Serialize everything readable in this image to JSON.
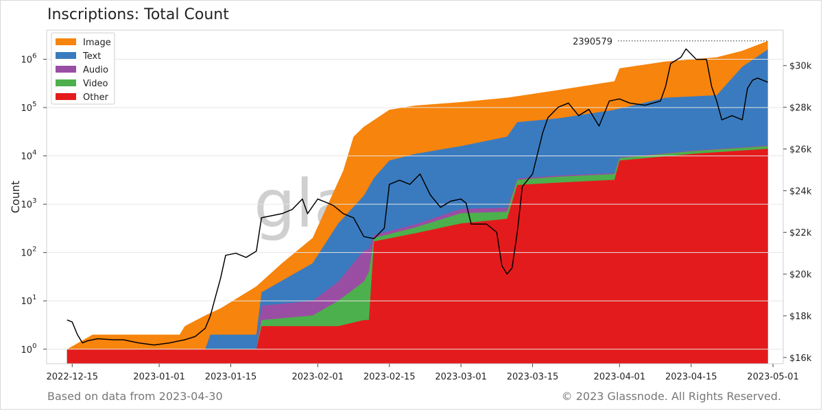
{
  "title": "Inscriptions: Total Count",
  "footer": {
    "source_note": "Based on data from 2023-04-30",
    "copyright": "© 2023 Glassnode. All Rights Reserved."
  },
  "watermark": "glassnode",
  "chart_data": {
    "type": "area",
    "stacked": true,
    "title": "Inscriptions: Total Count",
    "ylabel": "Count",
    "y_scale": "log",
    "ylim": [
      0.5,
      4000000
    ],
    "y_ticks": [
      {
        "value": 1,
        "base": "10",
        "exp": "0"
      },
      {
        "value": 10,
        "base": "10",
        "exp": "1"
      },
      {
        "value": 100,
        "base": "10",
        "exp": "2"
      },
      {
        "value": 1000,
        "base": "10",
        "exp": "3"
      },
      {
        "value": 10000,
        "base": "10",
        "exp": "4"
      },
      {
        "value": 100000,
        "base": "10",
        "exp": "5"
      },
      {
        "value": 1000000,
        "base": "10",
        "exp": "6"
      }
    ],
    "xlim": [
      "2022-12-10",
      "2023-05-03"
    ],
    "x_ticks": [
      "2022-12-15",
      "2023-01-01",
      "2023-01-15",
      "2023-02-01",
      "2023-02-15",
      "2023-03-01",
      "2023-03-15",
      "2023-04-01",
      "2023-04-15",
      "2023-05-01"
    ],
    "legend": {
      "placement": "top-left",
      "entries": [
        "Image",
        "Text",
        "Audio",
        "Video",
        "Other"
      ]
    },
    "grid": true,
    "annotation": {
      "label": "2390579",
      "value": 2390579,
      "date": "2023-04-30"
    },
    "colors": {
      "Image": "#f7840c",
      "Text": "#3a7bbf",
      "Audio": "#9a4ea3",
      "Video": "#4cb04c",
      "Other": "#e41b1c",
      "price": "#000000"
    },
    "series": [
      {
        "name": "Other",
        "points": [
          [
            "2022-12-14",
            1
          ],
          [
            "2023-01-20",
            1
          ],
          [
            "2023-01-21",
            3
          ],
          [
            "2023-01-31",
            3
          ],
          [
            "2023-02-05",
            3
          ],
          [
            "2023-02-10",
            4
          ],
          [
            "2023-02-11",
            4
          ],
          [
            "2023-02-12",
            170
          ],
          [
            "2023-02-20",
            250
          ],
          [
            "2023-03-01",
            400
          ],
          [
            "2023-03-10",
            500
          ],
          [
            "2023-03-12",
            2500
          ],
          [
            "2023-03-20",
            2800
          ],
          [
            "2023-03-31",
            3200
          ],
          [
            "2023-04-01",
            8000
          ],
          [
            "2023-04-15",
            11000
          ],
          [
            "2023-04-30",
            14000
          ]
        ]
      },
      {
        "name": "Video",
        "points": [
          [
            "2022-12-14",
            1
          ],
          [
            "2023-01-20",
            1
          ],
          [
            "2023-01-21",
            4
          ],
          [
            "2023-01-31",
            5
          ],
          [
            "2023-02-05",
            10
          ],
          [
            "2023-02-10",
            25
          ],
          [
            "2023-02-11",
            40
          ],
          [
            "2023-02-12",
            200
          ],
          [
            "2023-02-20",
            330
          ],
          [
            "2023-03-01",
            650
          ],
          [
            "2023-03-10",
            700
          ],
          [
            "2023-03-12",
            3200
          ],
          [
            "2023-03-20",
            3700
          ],
          [
            "2023-03-31",
            4200
          ],
          [
            "2023-04-01",
            9000
          ],
          [
            "2023-04-15",
            12500
          ],
          [
            "2023-04-30",
            16000
          ]
        ]
      },
      {
        "name": "Audio",
        "points": [
          [
            "2022-12-14",
            1
          ],
          [
            "2023-01-20",
            1
          ],
          [
            "2023-01-21",
            8
          ],
          [
            "2023-01-31",
            10
          ],
          [
            "2023-02-05",
            25
          ],
          [
            "2023-02-10",
            110
          ],
          [
            "2023-02-11",
            120
          ],
          [
            "2023-02-12",
            230
          ],
          [
            "2023-02-20",
            380
          ],
          [
            "2023-03-01",
            800
          ],
          [
            "2023-03-10",
            850
          ],
          [
            "2023-03-12",
            3400
          ],
          [
            "2023-03-20",
            3900
          ],
          [
            "2023-03-31",
            4400
          ],
          [
            "2023-04-01",
            9300
          ],
          [
            "2023-04-15",
            12800
          ],
          [
            "2023-04-30",
            16500
          ]
        ]
      },
      {
        "name": "Text",
        "points": [
          [
            "2022-12-14",
            1
          ],
          [
            "2023-01-10",
            1
          ],
          [
            "2023-01-11",
            2
          ],
          [
            "2023-01-20",
            2
          ],
          [
            "2023-01-21",
            15
          ],
          [
            "2023-01-31",
            60
          ],
          [
            "2023-02-05",
            400
          ],
          [
            "2023-02-10",
            1500
          ],
          [
            "2023-02-12",
            3500
          ],
          [
            "2023-02-15",
            8000
          ],
          [
            "2023-02-20",
            11000
          ],
          [
            "2023-03-01",
            16000
          ],
          [
            "2023-03-10",
            25000
          ],
          [
            "2023-03-12",
            50000
          ],
          [
            "2023-03-20",
            60000
          ],
          [
            "2023-03-31",
            90000
          ],
          [
            "2023-04-10",
            160000
          ],
          [
            "2023-04-20",
            180000
          ],
          [
            "2023-04-25",
            700000
          ],
          [
            "2023-04-30",
            1600000
          ]
        ]
      },
      {
        "name": "Image",
        "points": [
          [
            "2022-12-14",
            1
          ],
          [
            "2022-12-19",
            2
          ],
          [
            "2023-01-05",
            2
          ],
          [
            "2023-01-06",
            3
          ],
          [
            "2023-01-10",
            5
          ],
          [
            "2023-01-13",
            7
          ],
          [
            "2023-01-20",
            20
          ],
          [
            "2023-01-25",
            60
          ],
          [
            "2023-01-31",
            200
          ],
          [
            "2023-02-03",
            1000
          ],
          [
            "2023-02-06",
            5000
          ],
          [
            "2023-02-08",
            25000
          ],
          [
            "2023-02-10",
            40000
          ],
          [
            "2023-02-15",
            90000
          ],
          [
            "2023-02-20",
            110000
          ],
          [
            "2023-03-01",
            130000
          ],
          [
            "2023-03-10",
            160000
          ],
          [
            "2023-03-20",
            230000
          ],
          [
            "2023-03-31",
            350000
          ],
          [
            "2023-04-01",
            650000
          ],
          [
            "2023-04-10",
            900000
          ],
          [
            "2023-04-20",
            1100000
          ],
          [
            "2023-04-25",
            1500000
          ],
          [
            "2023-04-30",
            2390579
          ]
        ]
      }
    ],
    "price_axis": {
      "unit": "USD",
      "ylim": [
        15700,
        31700
      ],
      "ticks": [
        {
          "value": 16000,
          "label": "$16k"
        },
        {
          "value": 18000,
          "label": "$18k"
        },
        {
          "value": 20000,
          "label": "$20k"
        },
        {
          "value": 22000,
          "label": "$22k"
        },
        {
          "value": 24000,
          "label": "$24k"
        },
        {
          "value": 26000,
          "label": "$26k"
        },
        {
          "value": 28000,
          "label": "$28k"
        },
        {
          "value": 30000,
          "label": "$30k"
        }
      ]
    },
    "price_series": [
      [
        "2022-12-14",
        17800
      ],
      [
        "2022-12-15",
        17700
      ],
      [
        "2022-12-16",
        17100
      ],
      [
        "2022-12-17",
        16700
      ],
      [
        "2022-12-18",
        16800
      ],
      [
        "2022-12-20",
        16900
      ],
      [
        "2022-12-23",
        16850
      ],
      [
        "2022-12-25",
        16850
      ],
      [
        "2022-12-28",
        16700
      ],
      [
        "2022-12-31",
        16600
      ],
      [
        "2023-01-03",
        16700
      ],
      [
        "2023-01-06",
        16850
      ],
      [
        "2023-01-08",
        17000
      ],
      [
        "2023-01-09",
        17200
      ],
      [
        "2023-01-10",
        17400
      ],
      [
        "2023-01-11",
        18000
      ],
      [
        "2023-01-12",
        18900
      ],
      [
        "2023-01-13",
        19800
      ],
      [
        "2023-01-14",
        20900
      ],
      [
        "2023-01-16",
        21000
      ],
      [
        "2023-01-18",
        20800
      ],
      [
        "2023-01-20",
        21100
      ],
      [
        "2023-01-21",
        22700
      ],
      [
        "2023-01-23",
        22800
      ],
      [
        "2023-01-25",
        22900
      ],
      [
        "2023-01-27",
        23100
      ],
      [
        "2023-01-29",
        23600
      ],
      [
        "2023-01-30",
        22900
      ],
      [
        "2023-02-01",
        23600
      ],
      [
        "2023-02-02",
        23500
      ],
      [
        "2023-02-04",
        23300
      ],
      [
        "2023-02-06",
        22900
      ],
      [
        "2023-02-08",
        22700
      ],
      [
        "2023-02-10",
        21800
      ],
      [
        "2023-02-12",
        21700
      ],
      [
        "2023-02-14",
        22200
      ],
      [
        "2023-02-15",
        24300
      ],
      [
        "2023-02-17",
        24500
      ],
      [
        "2023-02-19",
        24300
      ],
      [
        "2023-02-21",
        24800
      ],
      [
        "2023-02-23",
        23800
      ],
      [
        "2023-02-25",
        23200
      ],
      [
        "2023-02-27",
        23500
      ],
      [
        "2023-03-01",
        23600
      ],
      [
        "2023-03-02",
        23400
      ],
      [
        "2023-03-03",
        22400
      ],
      [
        "2023-03-06",
        22400
      ],
      [
        "2023-03-08",
        22000
      ],
      [
        "2023-03-09",
        20400
      ],
      [
        "2023-03-10",
        20000
      ],
      [
        "2023-03-11",
        20300
      ],
      [
        "2023-03-12",
        22000
      ],
      [
        "2023-03-13",
        24200
      ],
      [
        "2023-03-15",
        24800
      ],
      [
        "2023-03-17",
        26800
      ],
      [
        "2023-03-18",
        27500
      ],
      [
        "2023-03-20",
        28000
      ],
      [
        "2023-03-22",
        28200
      ],
      [
        "2023-03-24",
        27600
      ],
      [
        "2023-03-26",
        27900
      ],
      [
        "2023-03-28",
        27100
      ],
      [
        "2023-03-30",
        28300
      ],
      [
        "2023-04-01",
        28400
      ],
      [
        "2023-04-03",
        28200
      ],
      [
        "2023-04-06",
        28100
      ],
      [
        "2023-04-09",
        28300
      ],
      [
        "2023-04-10",
        29000
      ],
      [
        "2023-04-11",
        30100
      ],
      [
        "2023-04-13",
        30400
      ],
      [
        "2023-04-14",
        30800
      ],
      [
        "2023-04-16",
        30300
      ],
      [
        "2023-04-18",
        30300
      ],
      [
        "2023-04-19",
        29000
      ],
      [
        "2023-04-20",
        28300
      ],
      [
        "2023-04-21",
        27400
      ],
      [
        "2023-04-23",
        27600
      ],
      [
        "2023-04-25",
        27400
      ],
      [
        "2023-04-26",
        28900
      ],
      [
        "2023-04-27",
        29300
      ],
      [
        "2023-04-28",
        29400
      ],
      [
        "2023-04-29",
        29300
      ],
      [
        "2023-04-30",
        29200
      ]
    ]
  }
}
